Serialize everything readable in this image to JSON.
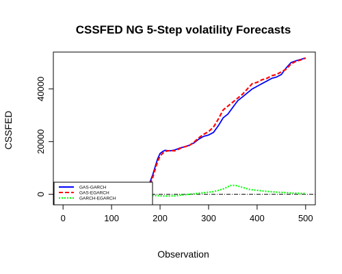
{
  "chart_data": {
    "type": "line",
    "title": "CSSFED NG 5-Step volatility Forecasts",
    "xlabel": "Observation",
    "ylabel": "CSSFED",
    "xlim": [
      -20,
      520
    ],
    "ylim": [
      -4000,
      54000
    ],
    "xticks": [
      0,
      100,
      200,
      300,
      400,
      500
    ],
    "yticks": [
      0,
      20000,
      40000
    ],
    "x_tick_labels": [
      "0",
      "100",
      "200",
      "300",
      "400",
      "500"
    ],
    "y_tick_labels": [
      "0",
      "20000",
      "40000"
    ],
    "reference_line": {
      "y": 0,
      "style": "dash-dot",
      "color": "#000000"
    },
    "legend": {
      "position": "bottom-left",
      "entries": [
        {
          "label": "GAS-GARCH",
          "color": "#0000ff",
          "style": "solid"
        },
        {
          "label": "GAS-EGARCH",
          "color": "#ff0000",
          "style": "dashed"
        },
        {
          "label": "GARCH-EGARCH",
          "color": "#00ff00",
          "style": "dotted"
        }
      ]
    },
    "series": [
      {
        "name": "GAS-GARCH",
        "color": "#0000ff",
        "style": "solid",
        "x": [
          1,
          20,
          50,
          80,
          110,
          140,
          160,
          170,
          178,
          185,
          190,
          195,
          200,
          205,
          210,
          220,
          230,
          240,
          250,
          260,
          270,
          280,
          290,
          300,
          310,
          320,
          325,
          330,
          340,
          350,
          360,
          370,
          380,
          390,
          400,
          410,
          420,
          430,
          440,
          450,
          460,
          470,
          480,
          490,
          500
        ],
        "values": [
          -3000,
          -2800,
          -2500,
          -2000,
          -1500,
          -800,
          -300,
          1500,
          4000,
          7500,
          10500,
          13500,
          15500,
          16200,
          16700,
          16500,
          16800,
          17500,
          18000,
          18600,
          19500,
          21000,
          22000,
          22500,
          23500,
          26000,
          27500,
          29000,
          30500,
          33000,
          35500,
          37000,
          38500,
          40000,
          41000,
          42000,
          43000,
          44000,
          44500,
          45500,
          48000,
          50000,
          50700,
          51200,
          51800
        ]
      },
      {
        "name": "GAS-EGARCH",
        "color": "#ff0000",
        "style": "dashed",
        "x": [
          1,
          20,
          50,
          80,
          110,
          140,
          160,
          170,
          178,
          185,
          190,
          195,
          200,
          205,
          210,
          220,
          230,
          240,
          250,
          260,
          270,
          280,
          290,
          300,
          310,
          320,
          330,
          340,
          350,
          360,
          370,
          380,
          390,
          400,
          410,
          420,
          430,
          440,
          450,
          460,
          470,
          480,
          490,
          500
        ],
        "values": [
          -3000,
          -2800,
          -2500,
          -2000,
          -1500,
          -800,
          -300,
          1200,
          3000,
          6500,
          9500,
          12500,
          14500,
          15500,
          16300,
          16600,
          16500,
          17300,
          18000,
          18500,
          19800,
          21500,
          22800,
          23800,
          25500,
          28500,
          32000,
          33500,
          35000,
          36500,
          38000,
          40000,
          42000,
          42500,
          43500,
          44000,
          45000,
          45500,
          46500,
          47500,
          49500,
          50500,
          51000,
          51700
        ]
      },
      {
        "name": "GARCH-EGARCH",
        "color": "#00ff00",
        "style": "dotted",
        "x": [
          150,
          170,
          190,
          210,
          230,
          250,
          270,
          290,
          310,
          330,
          345,
          355,
          370,
          385,
          400,
          420,
          440,
          460,
          480,
          500
        ],
        "values": [
          -200,
          -300,
          -500,
          -700,
          -600,
          -200,
          200,
          600,
          1000,
          2000,
          3300,
          3400,
          2600,
          1800,
          1500,
          1100,
          800,
          600,
          400,
          300
        ]
      }
    ]
  }
}
